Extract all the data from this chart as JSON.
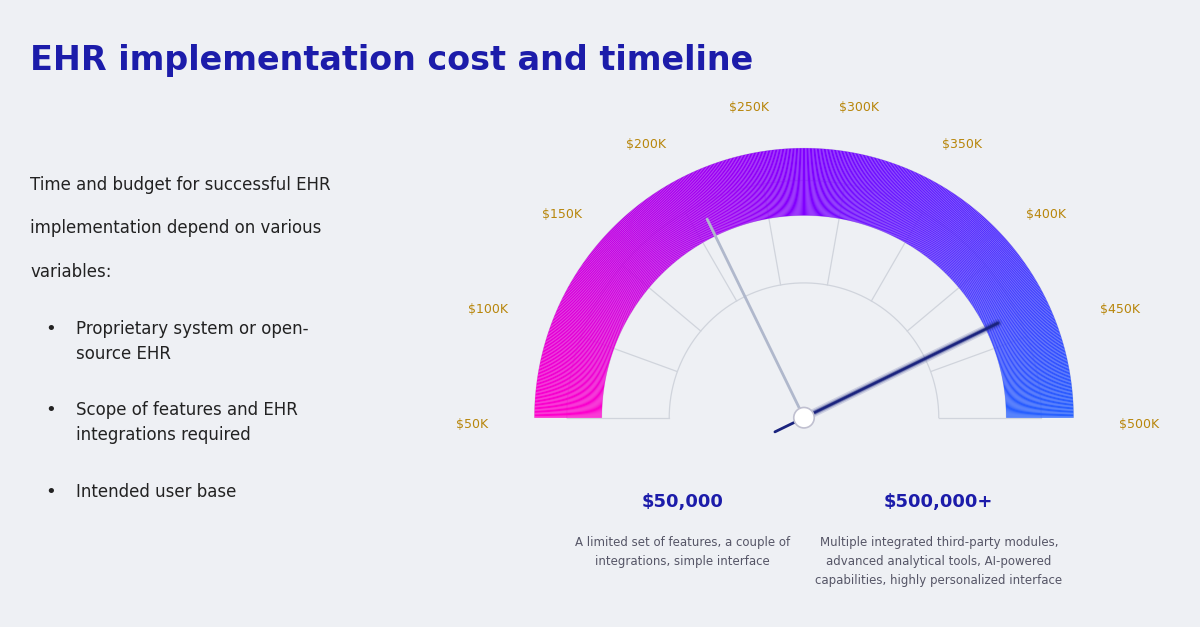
{
  "title": "EHR implementation cost and timeline",
  "title_color": "#1c1caa",
  "title_fontsize": 24,
  "background_color": "#eef0f4",
  "left_text_line1": "Time and budget for successful EHR",
  "left_text_line2": "implementation depend on various",
  "left_text_line3": "variables:",
  "bullets": [
    "Proprietary system or open-\nsource EHR",
    "Scope of features and EHR\nintegrations required",
    "Intended user base"
  ],
  "tick_labels": [
    "$50K",
    "$100K",
    "$150K",
    "$200K",
    "$250K",
    "$300K",
    "$350K",
    "$400K",
    "$450K",
    "$500K"
  ],
  "tick_label_color": "#b8860b",
  "tick_values": [
    50000,
    100000,
    150000,
    200000,
    250000,
    300000,
    350000,
    400000,
    450000,
    500000
  ],
  "min_val": 50000,
  "max_val": 500000,
  "needle1_val": 210000,
  "needle2_val": 435000,
  "bottom_left_title": "$50,000",
  "bottom_left_desc": "A limited set of features, a couple of\nintegrations, simple interface",
  "bottom_right_title": "$500,000+",
  "bottom_right_desc": "Multiple integrated third-party modules,\nadvanced analytical tools, AI-powered\ncapabilities, highly personalized interface",
  "outer_r": 1.0,
  "inner_r": 0.75,
  "needle_color1": "#b0b8cc",
  "needle_color2": "#1a237e",
  "grid_color": "#d0d4dc"
}
